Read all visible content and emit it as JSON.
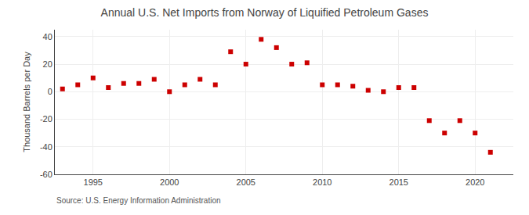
{
  "chart_data": {
    "type": "scatter",
    "title": "Annual U.S. Net Imports from Norway of Liquified Petroleum Gases",
    "ylabel": "Thousand Barrels per Day",
    "annotations": [
      "Source: U.S. Energy Information Administration"
    ],
    "x": [
      1993,
      1994,
      1995,
      1996,
      1997,
      1998,
      1999,
      2000,
      2001,
      2002,
      2003,
      2004,
      2005,
      2006,
      2007,
      2008,
      2009,
      2010,
      2011,
      2012,
      2013,
      2014,
      2015,
      2016,
      2017,
      2018,
      2019,
      2020,
      2021
    ],
    "values": [
      2,
      5,
      10,
      3,
      6,
      6,
      9,
      0,
      5,
      9,
      5,
      29,
      20,
      38,
      32,
      20,
      21,
      5,
      5,
      4,
      1,
      0,
      3,
      3,
      -21,
      -30,
      -21,
      -30,
      -44
    ],
    "color": "#cc0000",
    "marker": "square",
    "xlim": [
      1992.5,
      2022.5
    ],
    "ylim": [
      -60,
      45
    ],
    "xticks": [
      1995,
      2000,
      2005,
      2010,
      2015,
      2020
    ],
    "yticks": [
      -60,
      -40,
      -20,
      0,
      20,
      40
    ],
    "grid": true
  }
}
